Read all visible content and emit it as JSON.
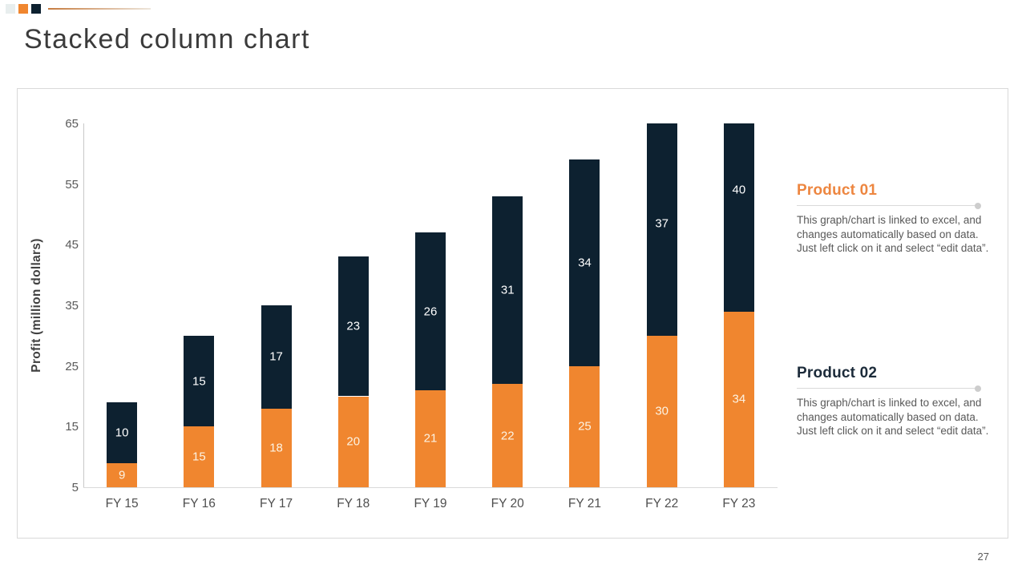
{
  "slide": {
    "title": "Stacked column chart",
    "page_number": "27"
  },
  "decoration": {
    "squares": [
      "#E8EEEE",
      "#F0862F",
      "#0D2130"
    ],
    "line_gradient": [
      "#C67B3F",
      "#EDE6DC"
    ]
  },
  "chart_data": {
    "type": "bar",
    "stacked": true,
    "title": "Stacked column chart",
    "categories": [
      "FY 15",
      "FY 16",
      "FY 17",
      "FY 18",
      "FY 19",
      "FY 20",
      "FY 21",
      "FY 22",
      "FY 23"
    ],
    "series": [
      {
        "name": "Product 01",
        "color": "#F0862F",
        "label_color": "#FCF3E3",
        "values": [
          9,
          15,
          18,
          20,
          21,
          22,
          25,
          30,
          34
        ]
      },
      {
        "name": "Product 02",
        "color": "#0D2130",
        "label_color": "#FFFFFF",
        "values": [
          10,
          15,
          17,
          23,
          26,
          31,
          34,
          37,
          40
        ]
      }
    ],
    "xlabel": "",
    "ylabel": "Profit (million dollars)",
    "ylim": [
      5,
      65
    ],
    "yticks": [
      5,
      15,
      25,
      35,
      45,
      55,
      65
    ],
    "grid": false,
    "data_labels": true,
    "legend_position": "right-text-blocks"
  },
  "legend": {
    "items": [
      {
        "title": "Product 01",
        "accent": "#ED8640",
        "description": "This graph/chart is linked to excel, and changes automatically based on data. Just left click on it and select “edit data”."
      },
      {
        "title": "Product 02",
        "accent": "#1C2B3A",
        "description": "This graph/chart is linked to excel, and changes automatically based on data. Just left click on it and select “edit data”."
      }
    ]
  }
}
